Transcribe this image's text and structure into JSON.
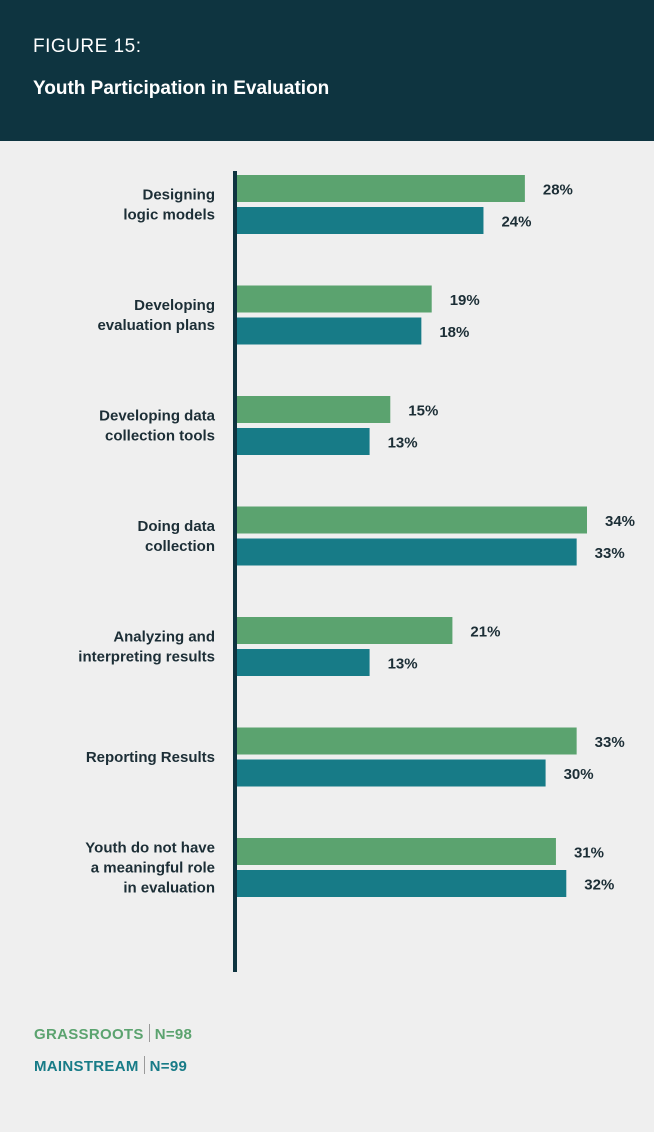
{
  "header": {
    "figure_label": "FIGURE 15:",
    "title": "Youth Participation in Evaluation"
  },
  "chart_data": {
    "type": "bar",
    "orientation": "horizontal",
    "title": "Youth Participation in Evaluation",
    "categories": [
      [
        "Designing",
        "logic models"
      ],
      [
        "Developing",
        "evaluation plans"
      ],
      [
        "Developing data",
        "collection tools"
      ],
      [
        "Doing data",
        "collection"
      ],
      [
        "Analyzing and",
        "interpreting results"
      ],
      [
        "Reporting Results"
      ],
      [
        "Youth do not have",
        "a meaningful role",
        "in evaluation"
      ]
    ],
    "series": [
      {
        "name": "GRASSROOTS",
        "values": [
          28,
          19,
          15,
          34,
          21,
          33,
          31
        ],
        "color": "#5ba36f"
      },
      {
        "name": "MAINSTREAM",
        "values": [
          24,
          18,
          13,
          33,
          13,
          30,
          32
        ],
        "color": "#177b87"
      }
    ],
    "value_suffix": "%",
    "xlim": [
      0,
      34
    ]
  },
  "legend": {
    "grassroots_label": "GRASSROOTS",
    "grassroots_n": "N=98",
    "mainstream_label": "MAINSTREAM",
    "mainstream_n": "N=99"
  }
}
